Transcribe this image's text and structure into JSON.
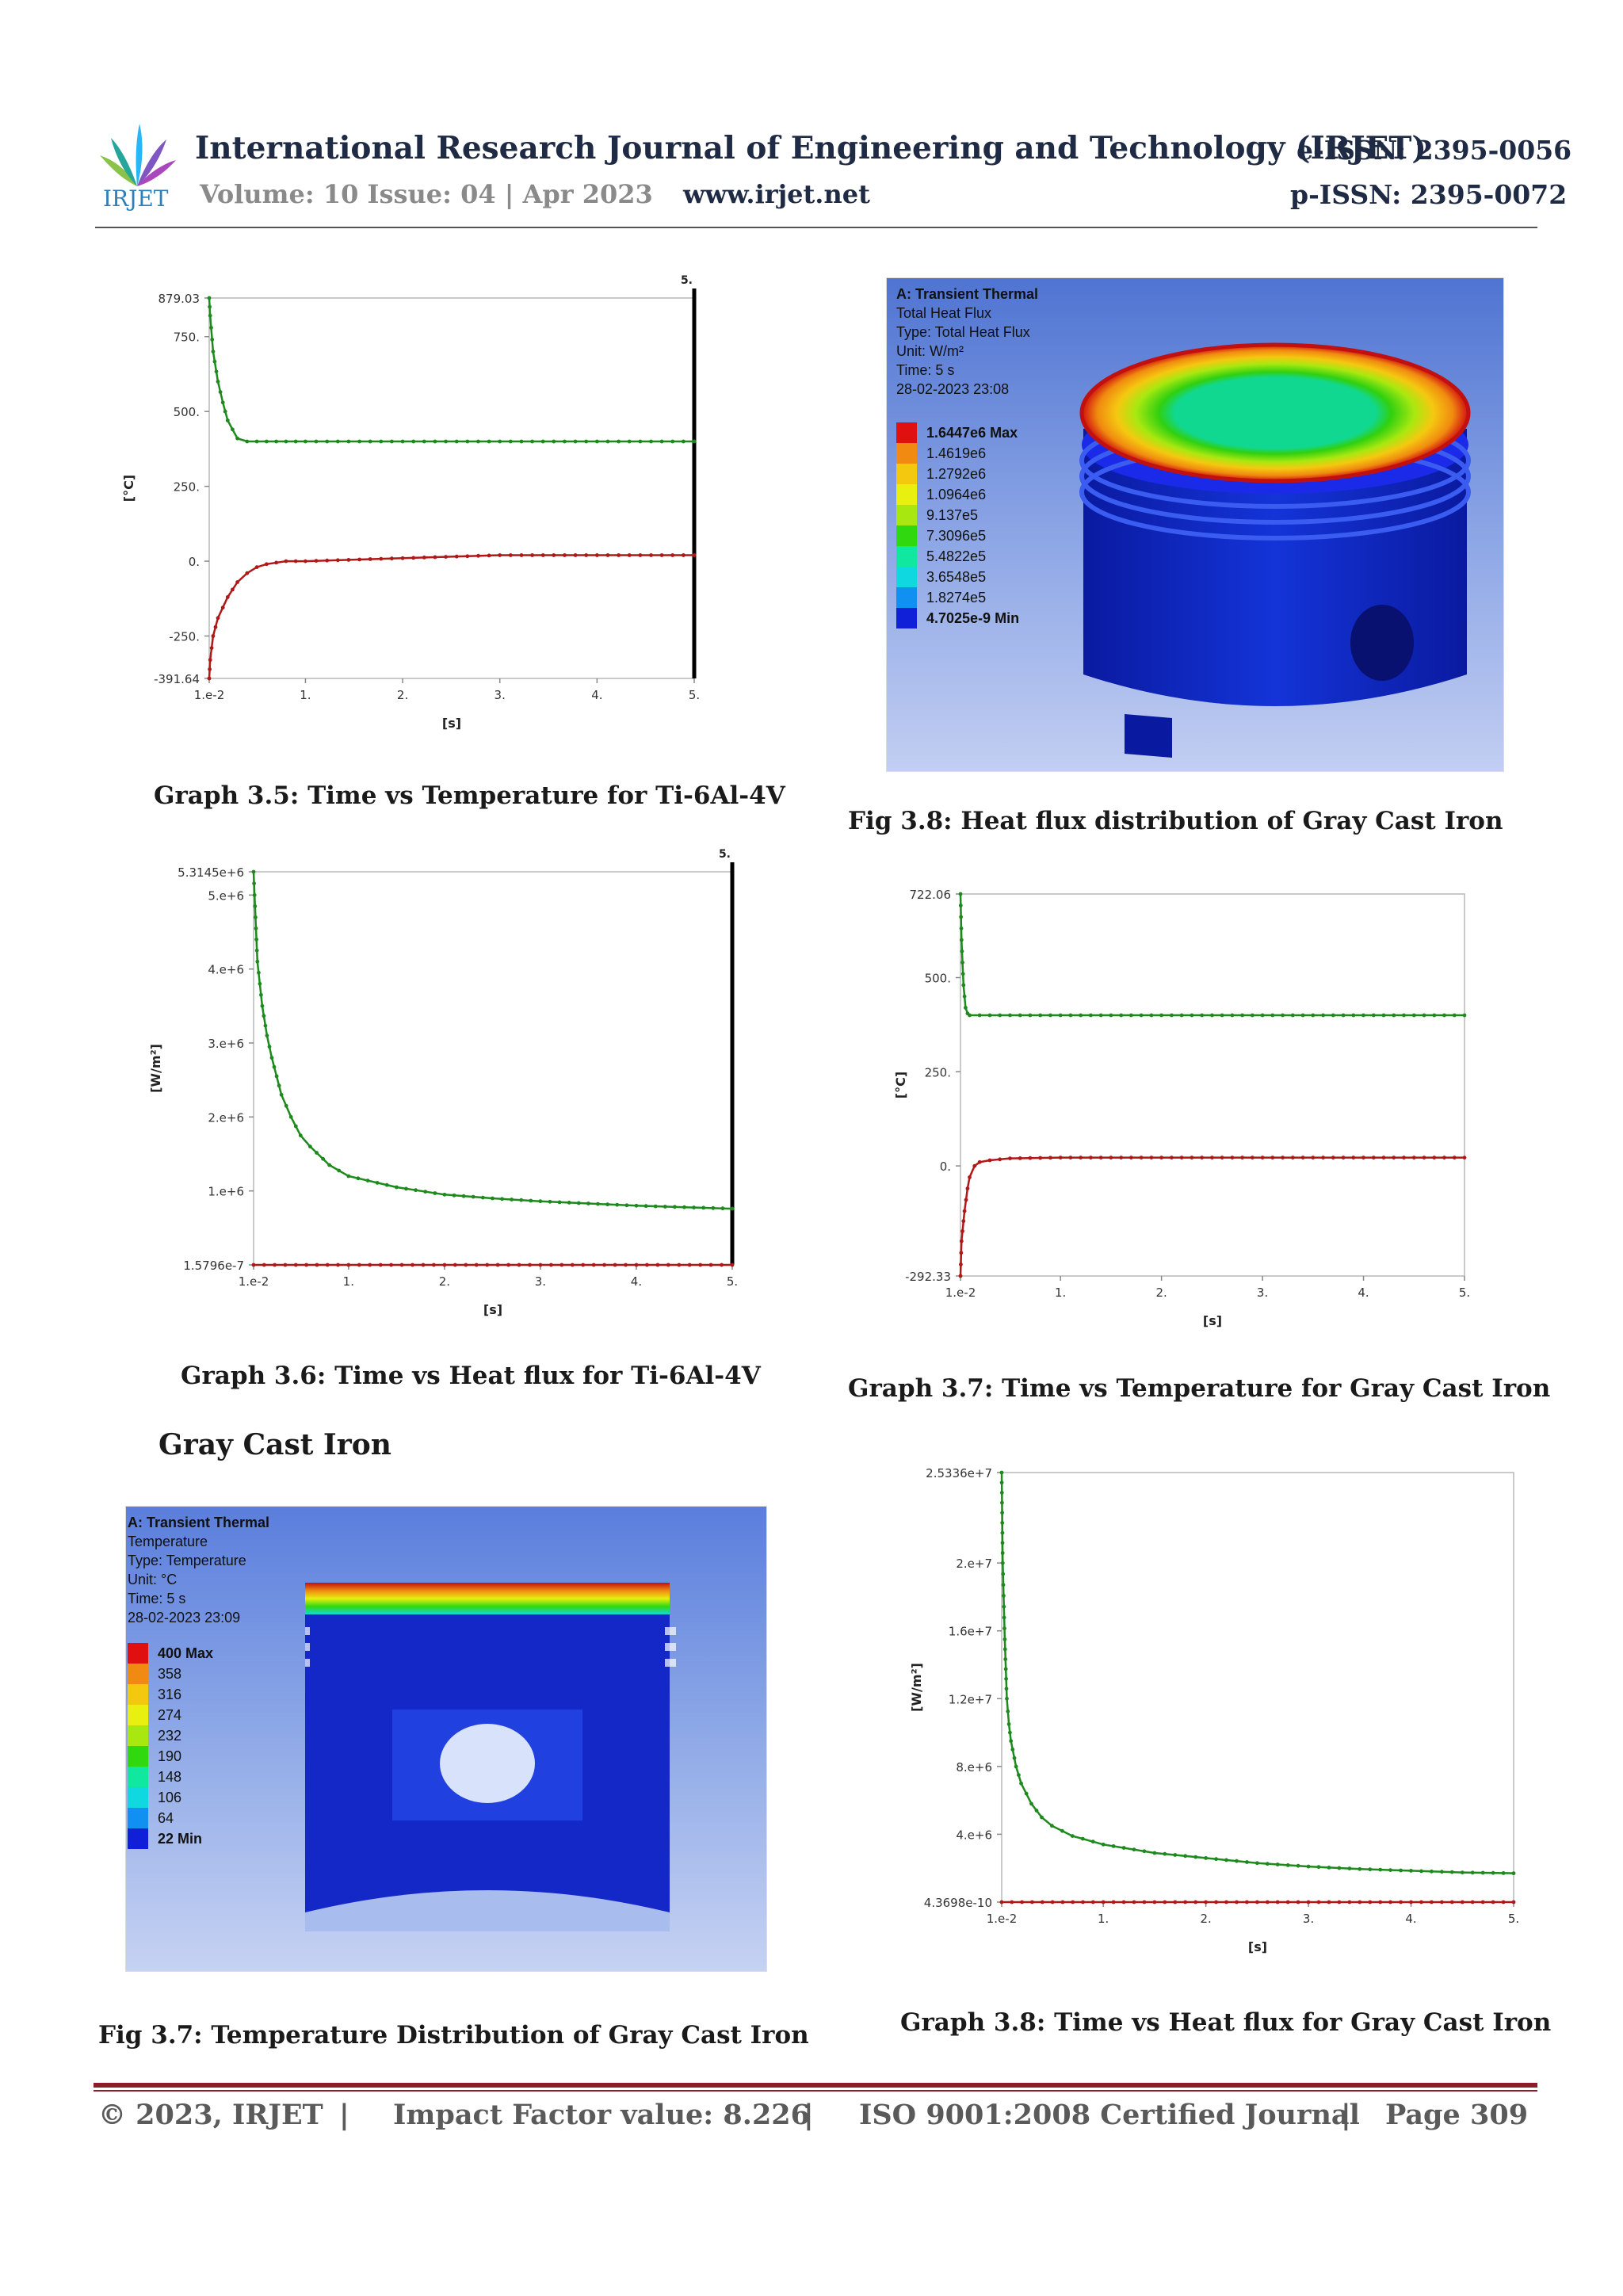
{
  "header": {
    "logo_text": "IRJET",
    "journal_title": "International Research Journal of Engineering and Technology (IRJET)",
    "eissn": "e-ISSN: 2395-0056",
    "volume": "Volume: 10 Issue: 04 | Apr 2023",
    "website": "www.irjet.net",
    "pissn": "p-ISSN: 2395-0072"
  },
  "captions": {
    "graph_3_5": "Graph 3.5: Time vs Temperature for Ti-6Al-4V",
    "fig_3_8": "Fig 3.8: Heat flux distribution of Gray Cast Iron",
    "graph_3_6": "Graph 3.6: Time vs Heat flux for Ti-6Al-4V",
    "graph_3_7": "Graph 3.7: Time vs Temperature for Gray Cast Iron",
    "section_gray_cast_iron": "Gray Cast Iron",
    "fig_3_7": "Fig 3.7: Temperature Distribution of Gray Cast Iron",
    "graph_3_8": "Graph 3.8: Time vs Heat flux for Gray Cast Iron"
  },
  "fig_3_8": {
    "lines": [
      "A: Transient Thermal",
      "Total Heat Flux",
      "Type: Total Heat Flux",
      "Unit: W/m²",
      "Time: 5 s",
      "28-02-2023 23:08"
    ],
    "legend": [
      "1.6447e6 Max",
      "1.4619e6",
      "1.2792e6",
      "1.0964e6",
      "9.137e5",
      "7.3096e5",
      "5.4822e5",
      "3.6548e5",
      "1.8274e5",
      "4.7025e-9 Min"
    ],
    "legend_colors": [
      "#e01010",
      "#f08a10",
      "#f5c810",
      "#e8f010",
      "#a8e810",
      "#30d810",
      "#10e8a0",
      "#10d8e0",
      "#1090f0",
      "#1020d8"
    ]
  },
  "fig_3_7": {
    "lines": [
      "A: Transient Thermal",
      "Temperature",
      "Type: Temperature",
      "Unit: °C",
      "Time: 5 s",
      "28-02-2023 23:09"
    ],
    "legend": [
      "400 Max",
      "358",
      "316",
      "274",
      "232",
      "190",
      "148",
      "106",
      "64",
      "22 Min"
    ],
    "legend_colors": [
      "#e01010",
      "#f08a10",
      "#f5c810",
      "#e8f010",
      "#a8e810",
      "#30d810",
      "#10e8a0",
      "#10d8e0",
      "#1090f0",
      "#1020d8"
    ]
  },
  "chart_data": [
    {
      "id": "graph_3_5",
      "type": "line",
      "xlabel": "[s]",
      "ylabel": "[°C]",
      "xlim": [
        0.01,
        5
      ],
      "ylim": [
        -391.64,
        879.03
      ],
      "x_ticks": [
        "1.e-2",
        "1.",
        "2.",
        "3.",
        "4.",
        "5."
      ],
      "x_tick_values": [
        0.01,
        1,
        2,
        3,
        4,
        5
      ],
      "y_ticks": [
        "879.03",
        "750.",
        "500.",
        "250.",
        "0.",
        "-250.",
        "-391.64"
      ],
      "y_tick_values": [
        879.03,
        750,
        500,
        250,
        0,
        -250,
        -391.64
      ],
      "top_label": "5.",
      "marker_line_x": 5,
      "series": [
        {
          "color": "#1e8a1e",
          "x": [
            0.01,
            0.02,
            0.05,
            0.1,
            0.15,
            0.2,
            0.3,
            0.4,
            0.5,
            1,
            2,
            3,
            4,
            5
          ],
          "y": [
            879.03,
            820,
            700,
            600,
            530,
            470,
            410,
            400,
            400,
            400,
            400,
            400,
            400,
            400
          ]
        },
        {
          "color": "#b01818",
          "x": [
            0.01,
            0.02,
            0.05,
            0.1,
            0.2,
            0.3,
            0.4,
            0.5,
            0.6,
            0.8,
            1,
            2,
            3,
            4,
            5
          ],
          "y": [
            -391.64,
            -330,
            -250,
            -190,
            -120,
            -70,
            -40,
            -20,
            -10,
            0,
            0,
            10,
            20,
            20,
            20
          ]
        }
      ]
    },
    {
      "id": "graph_3_6",
      "type": "line",
      "xlabel": "[s]",
      "ylabel": "[W/m²]",
      "xlim": [
        0.01,
        5
      ],
      "ylim": [
        1.5796e-07,
        5314500.0
      ],
      "x_ticks": [
        "1.e-2",
        "1.",
        "2.",
        "3.",
        "4.",
        "5."
      ],
      "x_tick_values": [
        0.01,
        1,
        2,
        3,
        4,
        5
      ],
      "y_ticks": [
        "5.3145e+6",
        "5.e+6",
        "4.e+6",
        "3.e+6",
        "2.e+6",
        "1.e+6",
        "1.5796e-7"
      ],
      "y_tick_values": [
        5314500,
        5000000,
        4000000,
        3000000,
        2000000,
        1000000,
        0
      ],
      "top_label": "5.",
      "marker_line_x": 5,
      "series": [
        {
          "color": "#1e8a1e",
          "x": [
            0.01,
            0.02,
            0.05,
            0.1,
            0.15,
            0.2,
            0.3,
            0.4,
            0.5,
            0.6,
            0.8,
            1,
            1.5,
            2,
            2.5,
            3,
            3.5,
            4,
            4.5,
            5
          ],
          "y": [
            5314500,
            5000000,
            4100000,
            3500000,
            3100000,
            2800000,
            2300000,
            2000000,
            1750000,
            1600000,
            1350000,
            1200000,
            1050000,
            950000,
            900000,
            860000,
            830000,
            800000,
            780000,
            760000
          ]
        },
        {
          "color": "#b01818",
          "x": [
            0.01,
            1,
            2,
            3,
            4,
            5
          ],
          "y": [
            0,
            0,
            0,
            0,
            0,
            0
          ]
        }
      ]
    },
    {
      "id": "graph_3_7",
      "type": "line",
      "xlabel": "[s]",
      "ylabel": "[°C]",
      "xlim": [
        0.01,
        5
      ],
      "ylim": [
        -292.33,
        722.06
      ],
      "x_ticks": [
        "1.e-2",
        "1.",
        "2.",
        "3.",
        "4.",
        "5."
      ],
      "x_tick_values": [
        0.01,
        1,
        2,
        3,
        4,
        5
      ],
      "y_ticks": [
        "722.06",
        "500.",
        "250.",
        "0.",
        "-292.33"
      ],
      "y_tick_values": [
        722.06,
        500,
        250,
        0,
        -292.33
      ],
      "series": [
        {
          "color": "#1e8a1e",
          "x": [
            0.01,
            0.02,
            0.04,
            0.06,
            0.08,
            0.1,
            0.2,
            1,
            2,
            3,
            4,
            5
          ],
          "y": [
            722.06,
            600,
            480,
            420,
            405,
            400,
            400,
            400,
            400,
            400,
            400,
            400
          ]
        },
        {
          "color": "#b01818",
          "x": [
            0.01,
            0.02,
            0.05,
            0.08,
            0.1,
            0.15,
            0.2,
            0.3,
            0.5,
            1,
            2,
            3,
            4,
            5
          ],
          "y": [
            -292.33,
            -200,
            -120,
            -60,
            -30,
            0,
            10,
            15,
            20,
            22,
            22,
            22,
            22,
            22
          ]
        }
      ]
    },
    {
      "id": "graph_3_8",
      "type": "line",
      "xlabel": "[s]",
      "ylabel": "[W/m²]",
      "xlim": [
        0.01,
        5
      ],
      "ylim": [
        4.3698e-10,
        25336000.0
      ],
      "x_ticks": [
        "1.e-2",
        "1.",
        "2.",
        "3.",
        "4.",
        "5."
      ],
      "x_tick_values": [
        0.01,
        1,
        2,
        3,
        4,
        5
      ],
      "y_ticks": [
        "2.5336e+7",
        "2.e+7",
        "1.6e+7",
        "1.2e+7",
        "8.e+6",
        "4.e+6",
        "4.3698e-10"
      ],
      "y_tick_values": [
        25336000,
        20000000,
        16000000,
        12000000,
        8000000,
        4000000,
        0
      ],
      "series": [
        {
          "color": "#1e8a1e",
          "x": [
            0.01,
            0.02,
            0.04,
            0.06,
            0.08,
            0.1,
            0.15,
            0.2,
            0.3,
            0.4,
            0.5,
            0.7,
            1,
            1.5,
            2,
            2.5,
            3,
            3.5,
            4,
            4.5,
            5
          ],
          "y": [
            25336000,
            20000000,
            15500000,
            12000000,
            10500000,
            9500000,
            8000000,
            7000000,
            5800000,
            5000000,
            4500000,
            3900000,
            3400000,
            2900000,
            2600000,
            2300000,
            2100000,
            1950000,
            1850000,
            1750000,
            1700000
          ]
        },
        {
          "color": "#b01818",
          "x": [
            0.01,
            1,
            2,
            3,
            4,
            5
          ],
          "y": [
            0,
            0,
            0,
            0,
            0,
            0
          ]
        }
      ]
    }
  ],
  "footer": {
    "copyright": "© 2023, IRJET",
    "sep1": "|",
    "impact": "Impact Factor value: 8.226",
    "sep2": "|",
    "iso": "ISO 9001:2008 Certified Journal",
    "sep3": "|",
    "page": "Page 309"
  }
}
